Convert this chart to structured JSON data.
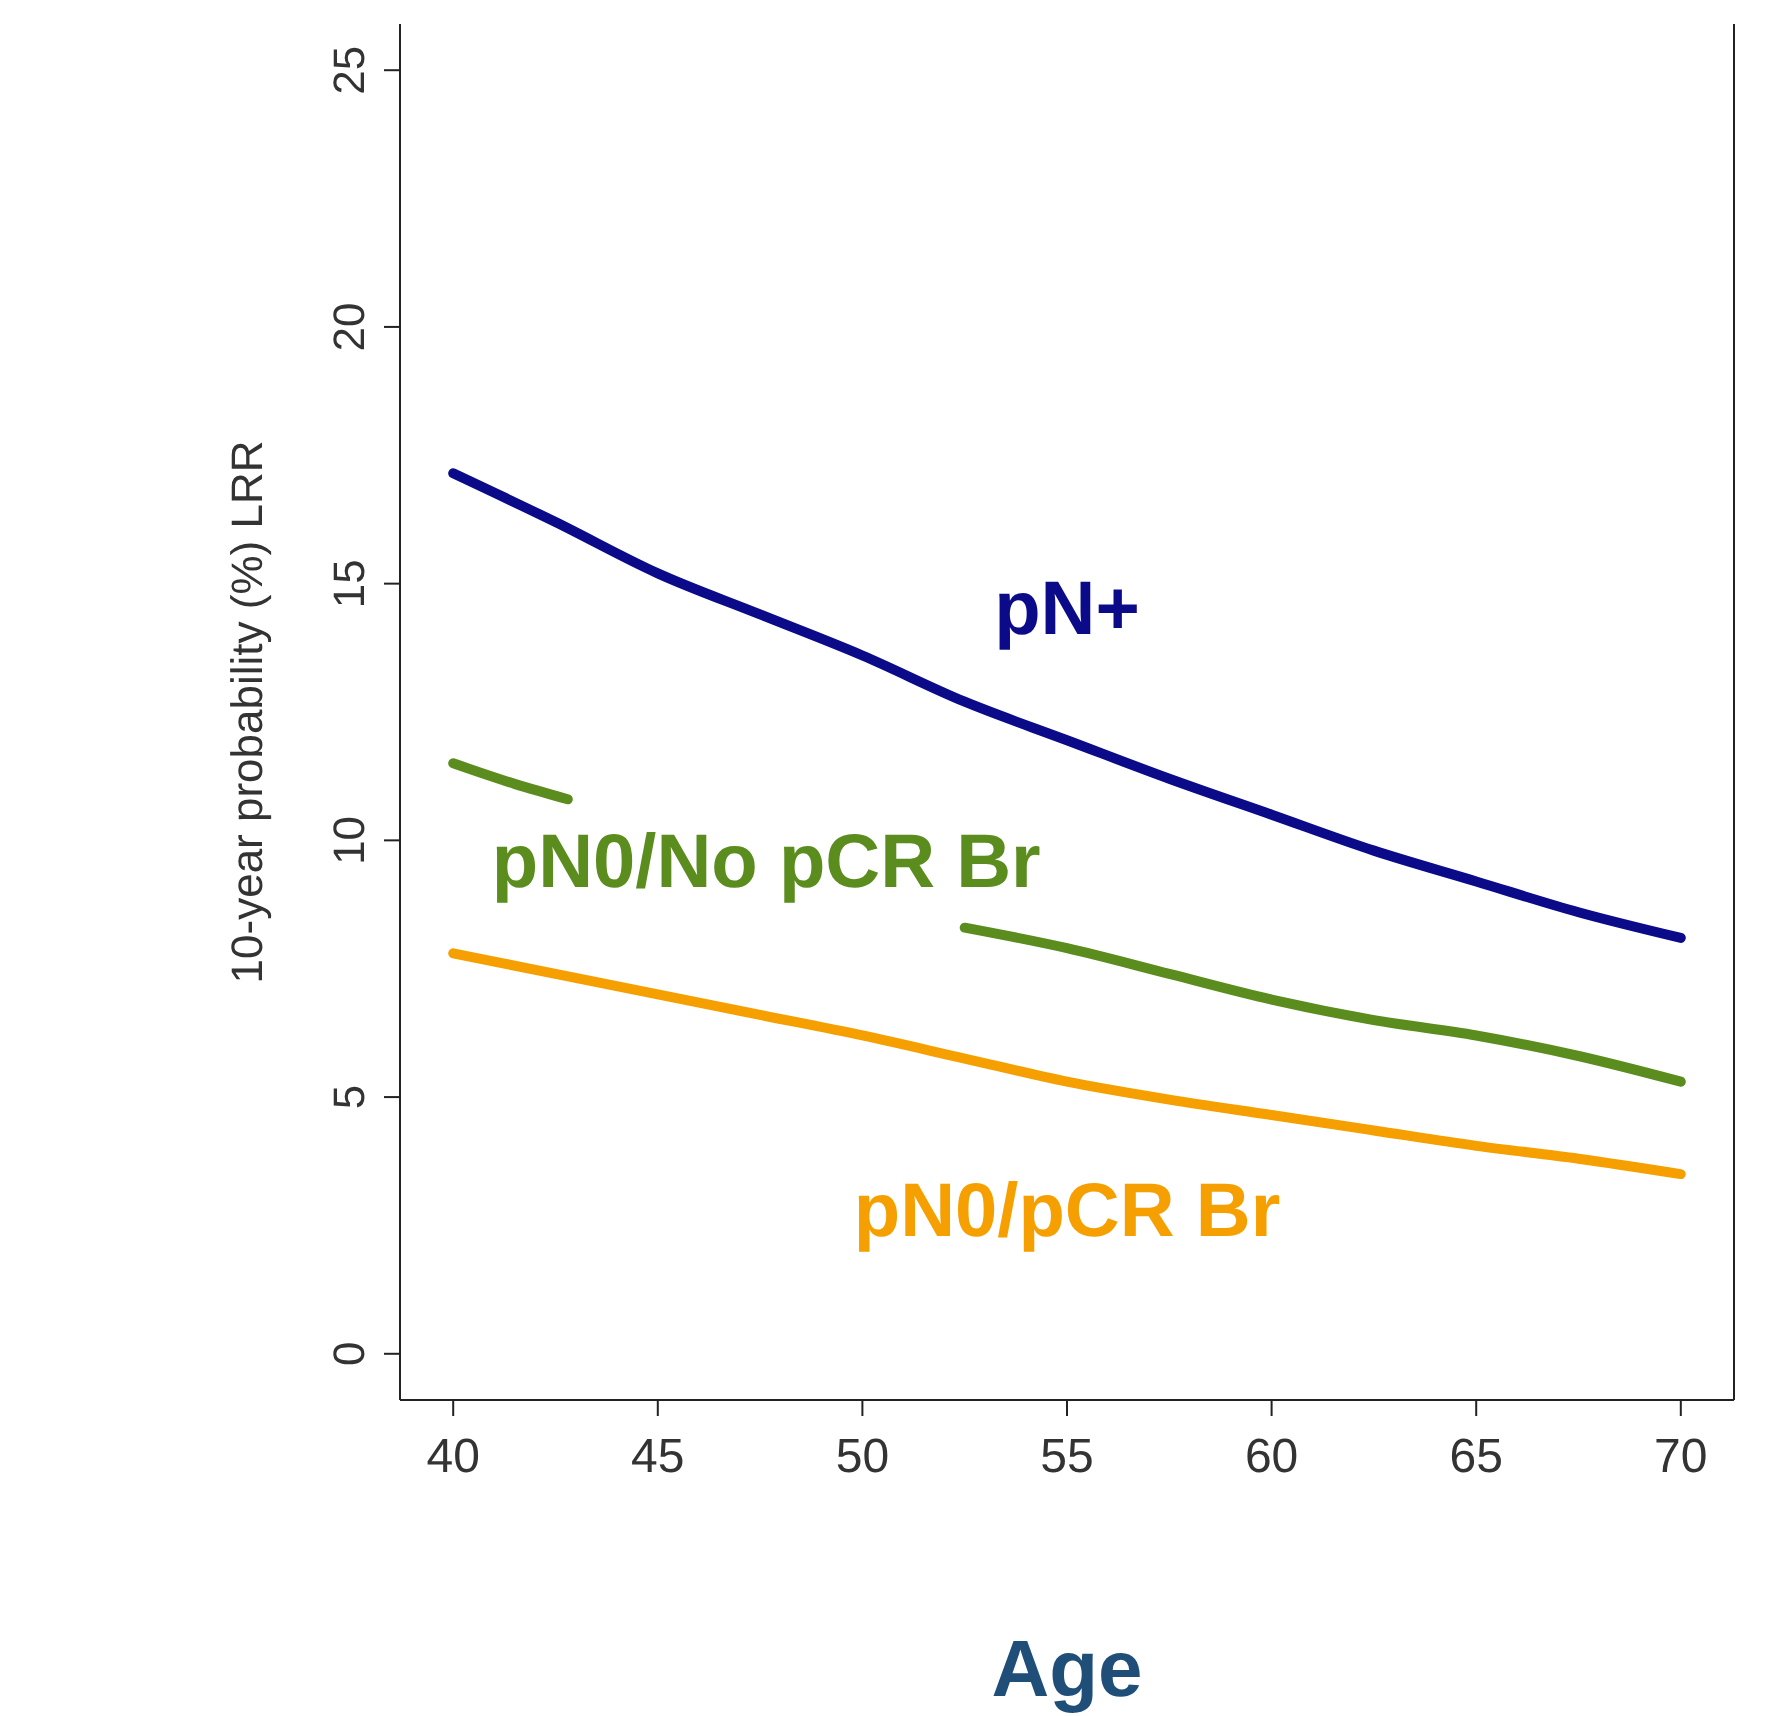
{
  "chart_data": {
    "type": "line",
    "xlabel": "Age",
    "ylabel": "10-year probability (%) LRR",
    "xlim": [
      38.7,
      71.3
    ],
    "ylim": [
      -0.9,
      25.9
    ],
    "xticks": [
      40,
      45,
      50,
      55,
      60,
      65,
      70
    ],
    "yticks": [
      0,
      5,
      10,
      15,
      20,
      25
    ],
    "grid": false,
    "legend": false,
    "marker": "none",
    "line_style": "solid",
    "series": [
      {
        "name": "pN+",
        "color": "#0b0b8a",
        "x": [
          40,
          42.5,
          45,
          47.5,
          50,
          52.5,
          55,
          57.5,
          60,
          62.5,
          65,
          67.5,
          70
        ],
        "values": [
          17.15,
          16.2,
          15.2,
          14.4,
          13.6,
          12.7,
          11.95,
          11.2,
          10.5,
          9.8,
          9.2,
          8.6,
          8.1
        ]
      },
      {
        "name": "pN0/No pCR Br",
        "color": "#5b8c1e",
        "x": [
          40,
          41.5,
          42.8,
          45,
          50,
          52.5,
          55,
          57.5,
          60,
          62.5,
          65,
          67.5,
          70
        ],
        "values": [
          11.5,
          11.1,
          10.8,
          null,
          null,
          8.3,
          7.9,
          7.4,
          6.9,
          6.5,
          6.2,
          5.8,
          5.3
        ]
      },
      {
        "name": "pN0/pCR Br",
        "color": "#f5a000",
        "x": [
          40,
          42.5,
          45,
          47.5,
          50,
          52.5,
          55,
          57.5,
          60,
          62.5,
          65,
          67.5,
          70
        ],
        "values": [
          7.8,
          7.4,
          7.0,
          6.6,
          6.2,
          5.75,
          5.3,
          4.95,
          4.65,
          4.35,
          4.05,
          3.8,
          3.5
        ]
      }
    ]
  }
}
